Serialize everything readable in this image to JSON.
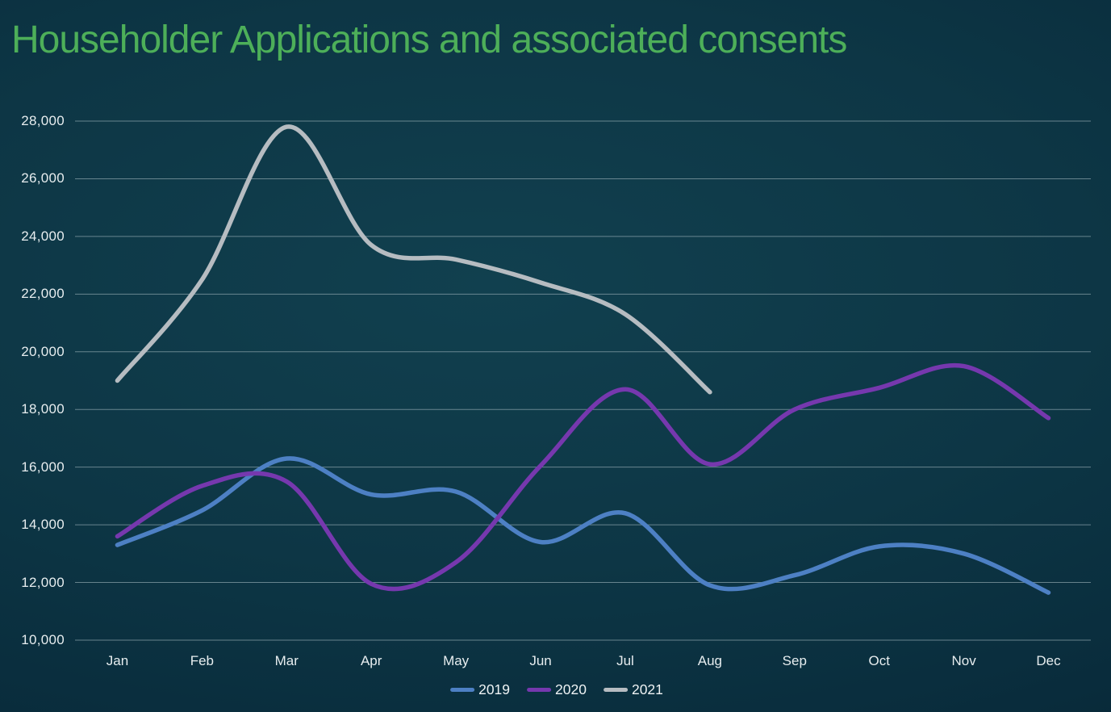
{
  "title": "Householder Applications and associated consents",
  "colors": {
    "title_green": "#4daf59",
    "axis_text": "#e7edef",
    "gridline": "#9fb4bb",
    "series_2019_blue": "#4d80c4",
    "series_2020_purple": "#7638ae",
    "series_2021_gray": "#b6bcc1"
  },
  "chart_data": {
    "type": "line",
    "title": "Householder Applications and associated consents",
    "xlabel": "",
    "ylabel": "",
    "categories": [
      "Jan",
      "Feb",
      "Mar",
      "Apr",
      "May",
      "Jun",
      "Jul",
      "Aug",
      "Sep",
      "Oct",
      "Nov",
      "Dec"
    ],
    "series": [
      {
        "name": "2019",
        "color": "#4d80c4",
        "values": [
          13300,
          14500,
          16300,
          15050,
          15150,
          13400,
          14400,
          11900,
          12250,
          13250,
          13000,
          11650
        ]
      },
      {
        "name": "2020",
        "color": "#7638ae",
        "values": [
          13600,
          15350,
          15500,
          11950,
          12700,
          16050,
          18700,
          16100,
          18000,
          18750,
          19500,
          17700
        ]
      },
      {
        "name": "2021",
        "color": "#b6bcc1",
        "values": [
          19000,
          22500,
          27800,
          23700,
          23200,
          22400,
          21300,
          18600
        ]
      }
    ],
    "ylim": [
      10000,
      28000
    ],
    "ytick_step": 2000,
    "y_tick_labels": [
      "28,000",
      "26,000",
      "24,000",
      "22,000",
      "20,000",
      "18,000",
      "16,000",
      "14,000",
      "12,000",
      "10,000"
    ],
    "grid": true,
    "smooth_lines": true,
    "legend_position": "bottom-center",
    "legend_entries": [
      "2019",
      "2020",
      "2021"
    ]
  }
}
